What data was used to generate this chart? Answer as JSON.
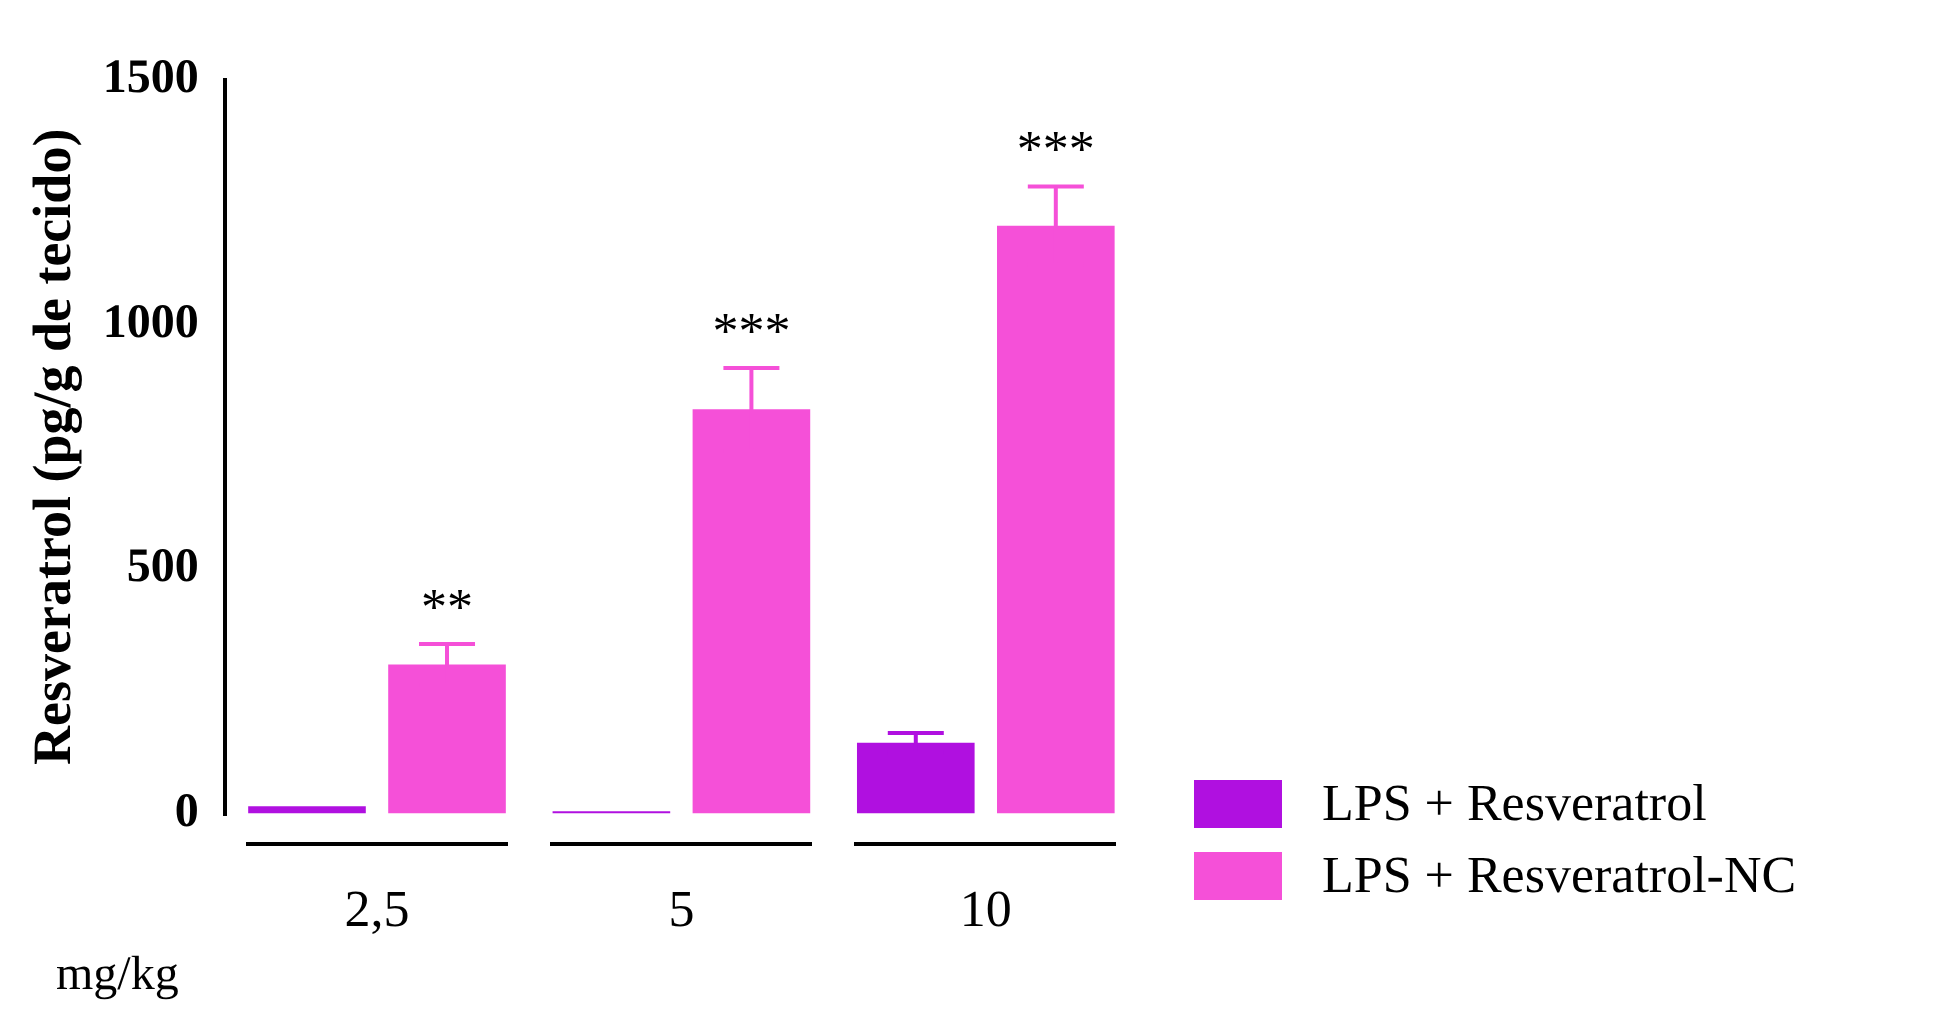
{
  "chart_data": {
    "type": "bar",
    "ylabel": "Resveratrol (pg/g de tecido)",
    "xlabel": "mg/kg",
    "categories": [
      "2,5",
      "5",
      "10"
    ],
    "series": [
      {
        "name": "LPS + Resveratrol",
        "color": "#b010e0",
        "values": [
          15,
          5,
          145
        ],
        "errors": [
          null,
          null,
          20
        ]
      },
      {
        "name": "LPS + Resveratrol-NC",
        "color": "#f550d8",
        "values": [
          305,
          827,
          1202
        ],
        "errors": [
          42,
          84,
          80
        ]
      }
    ],
    "ylim": [
      0,
      1500
    ],
    "yticks": [
      0,
      500,
      1000,
      1500
    ],
    "grid": false,
    "legend": "bottom right",
    "annotations": [
      "**",
      "***",
      "***"
    ]
  }
}
